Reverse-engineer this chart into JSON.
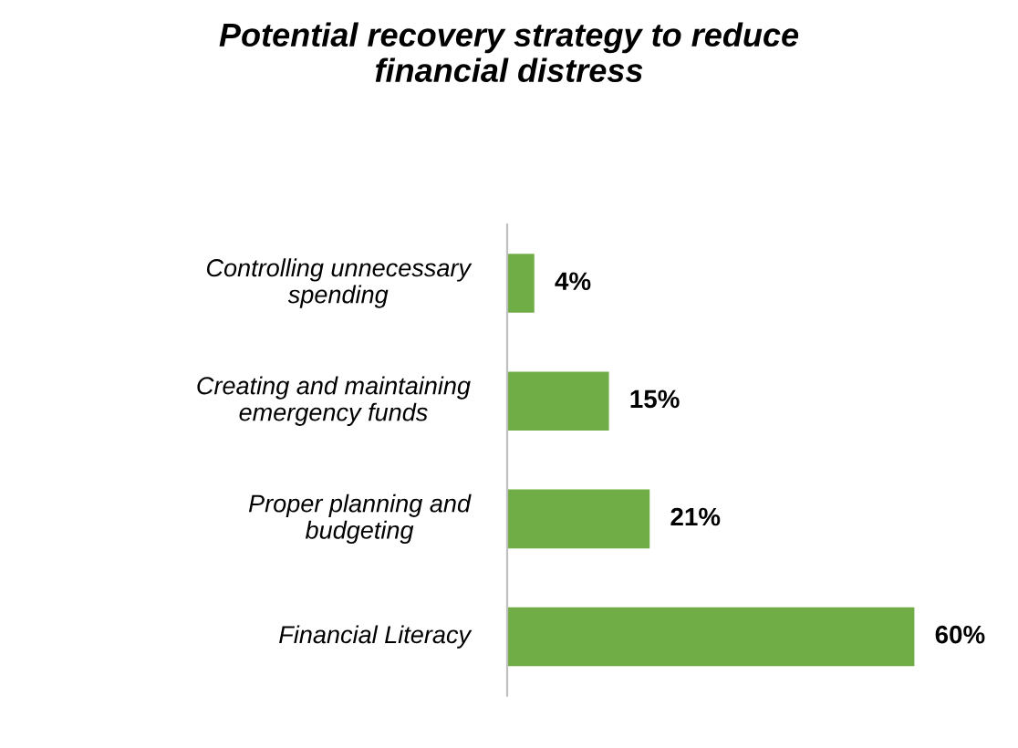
{
  "chart_data": {
    "type": "bar",
    "orientation": "horizontal",
    "title": "Potential recovery strategy to reduce financial distress",
    "categories": [
      "Controlling unnecessary spending",
      "Creating and maintaining emergency funds",
      "Proper planning and budgeting",
      "Financial Literacy"
    ],
    "values": [
      4,
      15,
      21,
      60
    ],
    "value_labels": [
      "4%",
      "15%",
      "21%",
      "60%"
    ],
    "color": "#70ad47"
  }
}
